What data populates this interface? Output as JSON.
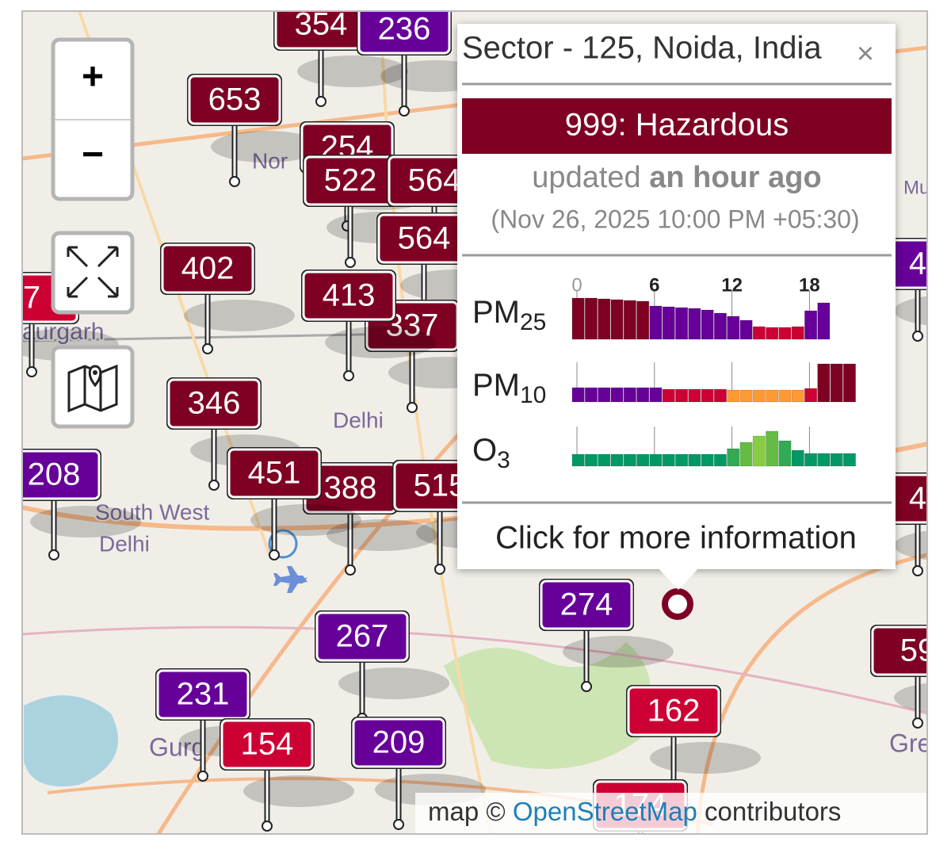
{
  "map": {
    "place_labels": [
      "Nor",
      "aurgarh",
      "Delhi",
      "South West",
      "Delhi",
      "Gurg",
      "Gre",
      "Mu"
    ],
    "markers": [
      {
        "label": 354,
        "color": "#7e0023"
      },
      {
        "label": 236,
        "color": "#660099"
      },
      {
        "label": 653,
        "color": "#7e0023"
      },
      {
        "label": 254,
        "color": "#7e0023"
      },
      {
        "label": 522,
        "color": "#7e0023"
      },
      {
        "label": 564,
        "color": "#7e0023"
      },
      {
        "label": 564,
        "color": "#7e0023"
      },
      {
        "label": 7,
        "color": "#cc0033"
      },
      {
        "label": 402,
        "color": "#7e0023"
      },
      {
        "label": 337,
        "color": "#7e0023"
      },
      {
        "label": 413,
        "color": "#7e0023"
      },
      {
        "label": 4,
        "color": "#660099"
      },
      {
        "label": 346,
        "color": "#7e0023"
      },
      {
        "label": 208,
        "color": "#660099"
      },
      {
        "label": 388,
        "color": "#7e0023"
      },
      {
        "label": 451,
        "color": "#7e0023"
      },
      {
        "label": 515,
        "color": "#7e0023"
      },
      {
        "label": 4,
        "color": "#7e0023"
      },
      {
        "label": 274,
        "color": "#660099"
      },
      {
        "label": 267,
        "color": "#660099"
      },
      {
        "label": 59,
        "color": "#7e0023"
      },
      {
        "label": 231,
        "color": "#660099"
      },
      {
        "label": 162,
        "color": "#cc0033"
      },
      {
        "label": 154,
        "color": "#cc0033"
      },
      {
        "label": 209,
        "color": "#660099"
      },
      {
        "label": 174,
        "color": "#cc0033"
      }
    ],
    "controls": {
      "zoom_in": "+",
      "zoom_out": "−"
    },
    "attribution": {
      "prefix": "map ©",
      "link": "OpenStreetMap",
      "suffix": "contributors"
    }
  },
  "popup": {
    "title": "Sector - 125, Noida, India",
    "close": "×",
    "banner": {
      "text": "999: Hazardous",
      "color": "#7e0023"
    },
    "updated": "updated",
    "updated_when": "an hour ago",
    "timestamp": "(Nov 26, 2025 10:00 PM +05:30)",
    "hour_ticks": [
      0,
      6,
      12,
      18
    ],
    "pollutants": [
      {
        "name": "PM",
        "sub": "25",
        "values": [
          52,
          52,
          51,
          50,
          49,
          48,
          42,
          41,
          40,
          39,
          37,
          33,
          29,
          24,
          16,
          15,
          15,
          16,
          36,
          46
        ],
        "colors": [
          "#7e0023",
          "#7e0023",
          "#7e0023",
          "#7e0023",
          "#7e0023",
          "#7e0023",
          "#660099",
          "#660099",
          "#660099",
          "#660099",
          "#660099",
          "#660099",
          "#660099",
          "#660099",
          "#cc0033",
          "#cc0033",
          "#cc0033",
          "#cc0033",
          "#660099",
          "#660099"
        ]
      },
      {
        "name": "PM",
        "sub": "10",
        "values": [
          18,
          18,
          18,
          18,
          18,
          18,
          18,
          16,
          16,
          16,
          16,
          16,
          15,
          15,
          15,
          15,
          15,
          15,
          17,
          48,
          48,
          48
        ],
        "colors": [
          "#660099",
          "#660099",
          "#660099",
          "#660099",
          "#660099",
          "#660099",
          "#660099",
          "#cc0033",
          "#cc0033",
          "#cc0033",
          "#cc0033",
          "#cc0033",
          "#ff9933",
          "#ff9933",
          "#ff9933",
          "#ff9933",
          "#ff9933",
          "#ff9933",
          "#cc0033",
          "#7e0023",
          "#7e0023",
          "#7e0023"
        ]
      },
      {
        "name": "O",
        "sub": "3",
        "values": [
          15,
          15,
          15,
          15,
          15,
          15,
          15,
          15,
          15,
          15,
          15,
          15,
          22,
          30,
          38,
          44,
          32,
          20,
          16,
          16,
          16,
          16
        ],
        "colors": [
          "#009966",
          "#009966",
          "#009966",
          "#009966",
          "#009966",
          "#009966",
          "#009966",
          "#009966",
          "#009966",
          "#009966",
          "#009966",
          "#009966",
          "#33aa55",
          "#66bb44",
          "#88cc44",
          "#66bb44",
          "#33aa55",
          "#009966",
          "#009966",
          "#009966",
          "#009966",
          "#009966"
        ]
      }
    ],
    "footer": "Click for more information"
  }
}
